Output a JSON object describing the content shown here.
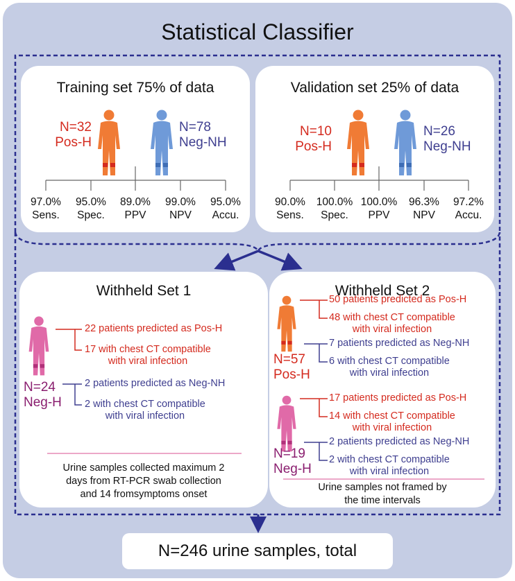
{
  "title": "Statistical Classifier",
  "colors": {
    "pos": "#d42a1e",
    "neg": "#3e3e8f",
    "neg_h": "#8a1e6f",
    "dash": "#2b2f8f",
    "frame": "#c5cde4"
  },
  "training": {
    "title": "Training set 75% of data",
    "pos": {
      "n": "N=32",
      "label": "Pos-H"
    },
    "neg": {
      "n": "N=78",
      "label": "Neg-NH"
    },
    "metrics": [
      {
        "value": "97.0%",
        "label": "Sens."
      },
      {
        "value": "95.0%",
        "label": "Spec."
      },
      {
        "value": "89.0%",
        "label": "PPV"
      },
      {
        "value": "99.0%",
        "label": "NPV"
      },
      {
        "value": "95.0%",
        "label": "Accu."
      }
    ]
  },
  "validation": {
    "title": "Validation set 25% of data",
    "pos": {
      "n": "N=10",
      "label": "Pos-H"
    },
    "neg": {
      "n": "N=26",
      "label": "Neg-NH"
    },
    "metrics": [
      {
        "value": "90.0%",
        "label": "Sens."
      },
      {
        "value": "100.0%",
        "label": "Spec."
      },
      {
        "value": "100.0%",
        "label": "PPV"
      },
      {
        "value": "96.3%",
        "label": "NPV"
      },
      {
        "value": "97.2%",
        "label": "Accu."
      }
    ]
  },
  "withheld1": {
    "title": "Withheld Set 1",
    "group": {
      "n": "N=24",
      "label": "Neg-H"
    },
    "pos_pred": "22 patients predicted as Pos-H",
    "pos_ct": [
      "17 with chest CT compatible",
      "with viral infection"
    ],
    "neg_pred": "2 patients predicted as Neg-NH",
    "neg_ct": [
      "2 with chest CT compatible",
      "with viral infection"
    ],
    "note": [
      "Urine samples collected maximum 2",
      "days from RT-PCR swab collection",
      "and 14 fromsymptoms onset"
    ]
  },
  "withheld2": {
    "title": "Withheld Set 2",
    "groupA": {
      "n": "N=57",
      "label": "Pos-H",
      "pos_pred": "50 patients predicted as Pos-H",
      "pos_ct": [
        "48 with chest CT compatible",
        "with viral infection"
      ],
      "neg_pred": "7 patients predicted as Neg-NH",
      "neg_ct": [
        "6 with chest CT compatible",
        "with viral infection"
      ]
    },
    "groupB": {
      "n": "N=19",
      "label": "Neg-H",
      "pos_pred": "17 patients predicted as Pos-H",
      "pos_ct": [
        "14 with chest CT compatible",
        "with viral infection"
      ],
      "neg_pred": "2 patients predicted as Neg-NH",
      "neg_ct": [
        "2 with chest CT compatible",
        "with viral infection"
      ]
    },
    "note": [
      "Urine samples not framed by",
      "the time intervals"
    ]
  },
  "total": "N=246 urine samples, total"
}
